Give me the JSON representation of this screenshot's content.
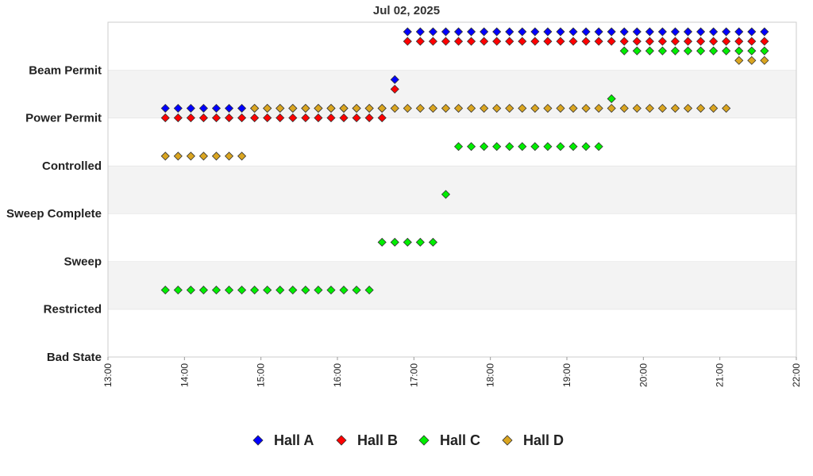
{
  "chart_data": {
    "type": "scatter",
    "title": "Jul 02, 2025",
    "xlabel": "",
    "ylabel": "",
    "x_ticks": [
      "13:00",
      "14:00",
      "15:00",
      "16:00",
      "17:00",
      "18:00",
      "19:00",
      "20:00",
      "21:00",
      "22:00"
    ],
    "xlim": [
      "13:00",
      "22:00"
    ],
    "y_categories": [
      "Bad State",
      "Restricted",
      "Sweep",
      "Sweep Complete",
      "Controlled",
      "Power Permit",
      "Beam Permit"
    ],
    "grid": "alternating horizontal bands",
    "legend_position": "bottom",
    "series": [
      {
        "name": "Hall A",
        "color": "#0000ff",
        "segments": [
          {
            "state": "Power Permit",
            "offset": 0.2,
            "times": [
              "13:45",
              "13:55",
              "14:05",
              "14:15",
              "14:25",
              "14:35",
              "14:45",
              "14:55",
              "15:05",
              "15:15",
              "15:25",
              "15:35",
              "15:45",
              "15:55",
              "16:05",
              "16:15",
              "16:25",
              "16:35"
            ]
          },
          {
            "state": "Beam Permit",
            "offset": -0.2,
            "times": [
              "16:45"
            ]
          },
          {
            "state": "Beam Permit",
            "offset": 0.8,
            "times": [
              "16:55",
              "17:05",
              "17:15",
              "17:25",
              "17:35",
              "17:45",
              "17:55",
              "18:05",
              "18:15",
              "18:25",
              "18:35",
              "18:45",
              "18:55",
              "19:05",
              "19:15",
              "19:25",
              "19:35",
              "19:45",
              "19:55",
              "20:05",
              "20:15",
              "20:25",
              "20:35",
              "20:45",
              "20:55",
              "21:05",
              "21:15",
              "21:25",
              "21:35"
            ]
          }
        ]
      },
      {
        "name": "Hall B",
        "color": "#ff0000",
        "segments": [
          {
            "state": "Power Permit",
            "offset": 0.0,
            "times": [
              "13:45",
              "13:55",
              "14:05",
              "14:15",
              "14:25",
              "14:35",
              "14:45",
              "14:55",
              "15:05",
              "15:15",
              "15:25",
              "15:35",
              "15:45",
              "15:55",
              "16:05",
              "16:15",
              "16:25",
              "16:35"
            ]
          },
          {
            "state": "Beam Permit",
            "offset": -0.4,
            "times": [
              "16:45"
            ]
          },
          {
            "state": "Beam Permit",
            "offset": 0.6,
            "times": [
              "16:55",
              "17:05",
              "17:15",
              "17:25",
              "17:35",
              "17:45",
              "17:55",
              "18:05",
              "18:15",
              "18:25",
              "18:35",
              "18:45",
              "18:55",
              "19:05",
              "19:15",
              "19:25",
              "19:35",
              "19:45",
              "19:55",
              "20:05",
              "20:15",
              "20:25",
              "20:35",
              "20:45",
              "20:55",
              "21:05",
              "21:15",
              "21:25",
              "21:35"
            ]
          }
        ]
      },
      {
        "name": "Hall C",
        "color": "#00ee00",
        "segments": [
          {
            "state": "Restricted",
            "offset": 0.4,
            "times": [
              "13:45",
              "13:55",
              "14:05",
              "14:15",
              "14:25",
              "14:35",
              "14:45",
              "14:55",
              "15:05",
              "15:15",
              "15:25",
              "15:35",
              "15:45",
              "15:55",
              "16:05",
              "16:15",
              "16:25"
            ]
          },
          {
            "state": "Sweep",
            "offset": 0.4,
            "times": [
              "16:35",
              "16:45",
              "16:55",
              "17:05",
              "17:15"
            ]
          },
          {
            "state": "Sweep Complete",
            "offset": 0.4,
            "times": [
              "17:25"
            ]
          },
          {
            "state": "Controlled",
            "offset": 0.4,
            "times": [
              "17:35",
              "17:45",
              "17:55",
              "18:05",
              "18:15",
              "18:25",
              "18:35",
              "18:45",
              "18:55",
              "19:05",
              "19:15",
              "19:25"
            ]
          },
          {
            "state": "Beam Permit",
            "offset": -0.6,
            "times": [
              "19:35"
            ]
          },
          {
            "state": "Beam Permit",
            "offset": 0.4,
            "times": [
              "19:45",
              "19:55",
              "20:05",
              "20:15",
              "20:25",
              "20:35",
              "20:45",
              "20:55",
              "21:05",
              "21:15",
              "21:25",
              "21:35"
            ]
          }
        ]
      },
      {
        "name": "Hall D",
        "color": "#daa520",
        "segments": [
          {
            "state": "Controlled",
            "offset": 0.2,
            "times": [
              "13:45",
              "13:55",
              "14:05",
              "14:15",
              "14:25",
              "14:35",
              "14:45"
            ]
          },
          {
            "state": "Power Permit",
            "offset": 0.2,
            "times": [
              "14:55",
              "15:05",
              "15:15",
              "15:25",
              "15:35",
              "15:45",
              "15:55",
              "16:05",
              "16:15",
              "16:25",
              "16:35",
              "16:45",
              "16:55",
              "17:05",
              "17:15",
              "17:25",
              "17:35",
              "17:45",
              "17:55",
              "18:05",
              "18:15",
              "18:25",
              "18:35",
              "18:45",
              "18:55",
              "19:05",
              "19:15",
              "19:25",
              "19:35",
              "19:45",
              "19:55",
              "20:05",
              "20:15",
              "20:25",
              "20:35",
              "20:45",
              "20:55",
              "21:05"
            ]
          },
          {
            "state": "Beam Permit",
            "offset": 0.2,
            "times": [
              "21:15",
              "21:25",
              "21:35"
            ]
          }
        ]
      }
    ]
  }
}
